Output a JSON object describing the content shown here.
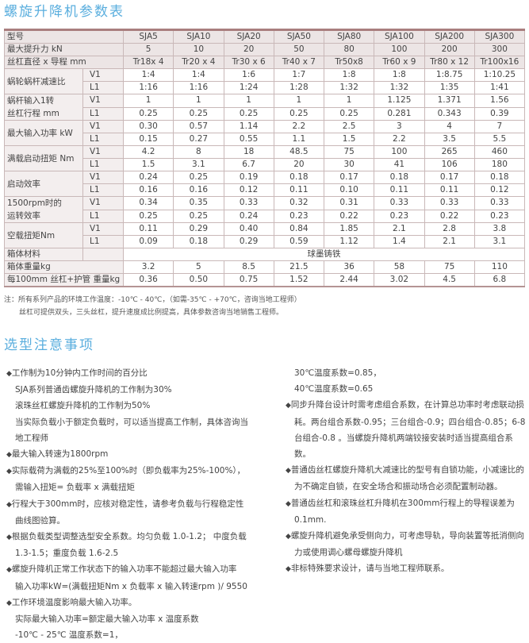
{
  "title": "螺旋升降机参数表",
  "table": {
    "header": {
      "label": "型号",
      "models": [
        "SJA5",
        "SJA10",
        "SJA20",
        "SJA50",
        "SJA80",
        "SJA100",
        "SJA200",
        "SJA300"
      ]
    },
    "single_rows_top": [
      {
        "label": "最大提升力 kN",
        "values": [
          "5",
          "10",
          "20",
          "50",
          "80",
          "100",
          "200",
          "300"
        ]
      },
      {
        "label": "丝杠直径 x 导程 mm",
        "values": [
          "Tr18x 4",
          "Tr20 x 4",
          "Tr30 x 6",
          "Tr40 x 7",
          "Tr50x8",
          "Tr60 x 9",
          "Tr80 x 12",
          "Tr100x16"
        ]
      }
    ],
    "pair_rows": [
      {
        "label": "蜗轮蜗杆减速比",
        "rows": [
          {
            "type": "V1",
            "values": [
              "1:4",
              "1:4",
              "1:6",
              "1:7",
              "1:8",
              "1:8",
              "1:8.75",
              "1:10.25"
            ]
          },
          {
            "type": "L1",
            "values": [
              "1:16",
              "1:16",
              "1:24",
              "1:28",
              "1:32",
              "1:32",
              "1:35",
              "1:41"
            ]
          }
        ]
      },
      {
        "label": "蜗杆输入1转\n丝杠行程 mm",
        "label_lines": [
          "蜗杆输入1转",
          "丝杠行程 mm"
        ],
        "rows": [
          {
            "type": "V1",
            "values": [
              "1",
              "1",
              "1",
              "1",
              "1",
              "1.125",
              "1.371",
              "1.56"
            ]
          },
          {
            "type": "L1",
            "values": [
              "0.25",
              "0.25",
              "0.25",
              "0.25",
              "0.25",
              "0.281",
              "0.343",
              "0.39"
            ]
          }
        ]
      },
      {
        "label": "最大输入功率 kW",
        "rows": [
          {
            "type": "V1",
            "values": [
              "0.30",
              "0.57",
              "1.14",
              "2.2",
              "2.5",
              "3",
              "4",
              "7"
            ]
          },
          {
            "type": "L1",
            "values": [
              "0.15",
              "0.27",
              "0.55",
              "1.1",
              "1.5",
              "2.2",
              "3.5",
              "5.5"
            ]
          }
        ]
      },
      {
        "label": "满载启动扭矩 Nm",
        "rows": [
          {
            "type": "V1",
            "values": [
              "4.2",
              "8",
              "18",
              "48.5",
              "75",
              "100",
              "265",
              "460"
            ]
          },
          {
            "type": "L1",
            "values": [
              "1.5",
              "3.1",
              "6.7",
              "20",
              "30",
              "41",
              "106",
              "180"
            ]
          }
        ]
      },
      {
        "label": "启动效率",
        "rows": [
          {
            "type": "V1",
            "values": [
              "0.24",
              "0.25",
              "0.19",
              "0.18",
              "0.17",
              "0.18",
              "0.17",
              "0.18"
            ]
          },
          {
            "type": "L1",
            "values": [
              "0.16",
              "0.16",
              "0.12",
              "0.11",
              "0.10",
              "0.11",
              "0.11",
              "0.12"
            ]
          }
        ]
      },
      {
        "label": "1500rpm时的\n运转效率",
        "label_lines": [
          "1500rpm时的",
          "运转效率"
        ],
        "rows": [
          {
            "type": "V1",
            "values": [
              "0.34",
              "0.35",
              "0.33",
              "0.32",
              "0.31",
              "0.33",
              "0.33",
              "0.33"
            ]
          },
          {
            "type": "L1",
            "values": [
              "0.25",
              "0.25",
              "0.24",
              "0.23",
              "0.22",
              "0.23",
              "0.22",
              "0.23"
            ]
          }
        ]
      },
      {
        "label": "空载扭矩Nm",
        "rows": [
          {
            "type": "V1",
            "values": [
              "0.11",
              "0.29",
              "0.40",
              "0.84",
              "1.85",
              "2.1",
              "2.8",
              "3.8"
            ]
          },
          {
            "type": "L1",
            "values": [
              "0.09",
              "0.18",
              "0.29",
              "0.59",
              "1.12",
              "1.4",
              "2.1",
              "3.1"
            ]
          }
        ]
      }
    ],
    "material": {
      "label": "箱体材料",
      "value": "球墨铸铁"
    },
    "single_rows_bottom": [
      {
        "label": "箱体重量kg",
        "values": [
          "3.2",
          "5",
          "8.5",
          "21.5",
          "36",
          "58",
          "75",
          "110"
        ]
      },
      {
        "label": "每100mm 丝杠+护管 重量kg",
        "values": [
          "0.36",
          "0.50",
          "0.75",
          "1.52",
          "2.44",
          "3.02",
          "4.5",
          "6.8"
        ]
      }
    ]
  },
  "notes": [
    "注：所有系列产品的环境工作温度：-10℃ - 40℃，（如需-35℃ - +70℃，咨询当地工程师）",
    "丝杠可提供双头，三头丝杠，提升速度成比例提高，具体参数咨询当地销售工程师。"
  ],
  "section2_title": "选型注意事项",
  "left_lines": [
    {
      "bullet": true,
      "text": "工作制为10分钟内工作时间的百分比"
    },
    {
      "bullet": false,
      "text": "SJA系列普通齿螺旋升降机的工作制为30%"
    },
    {
      "bullet": false,
      "text": "滚珠丝杠螺旋升降机的工作制为50%"
    },
    {
      "bullet": false,
      "text": "当实际负载小于额定负载时，可以适当提高工作制，具体咨询当"
    },
    {
      "bullet": false,
      "text": "地工程师"
    },
    {
      "bullet": true,
      "text": "最大输入转速为1800rpm"
    },
    {
      "bullet": true,
      "text": "实际载荷为满载的25%至100%时（即负载率为25%-100%），"
    },
    {
      "bullet": false,
      "text": "需输入扭矩= 负载率 x 满载扭矩"
    },
    {
      "bullet": true,
      "text": "行程大于300mm时，应核对稳定性，请参考负载与行程稳定性"
    },
    {
      "bullet": false,
      "text": "曲线图验算。"
    },
    {
      "bullet": true,
      "text": "根据负载类型调整选型安全系数。均匀负载 1.0-1.2； 中度负载"
    },
    {
      "bullet": false,
      "text": "1.3-1.5；重度负载 1.6-2.5"
    },
    {
      "bullet": true,
      "text": "螺旋升降机正常工作状态下的输入功率不能超过最大输入功率"
    },
    {
      "bullet": false,
      "text": "输入功率kW=(满载扭矩Nm x 负载率 x 输入转速rpm )/ 9550"
    },
    {
      "bullet": true,
      "text": "工作环境温度影响最大输入功率。"
    },
    {
      "bullet": false,
      "text": "实际最大输入功率=额定最大输入功率 x 温度系数"
    },
    {
      "bullet": false,
      "text": "-10℃ - 25℃ 温度系数=1，"
    }
  ],
  "right_lines": [
    {
      "bullet": false,
      "text": "30℃温度系数=0.85，"
    },
    {
      "bullet": false,
      "text": "40℃温度系数=0.65"
    },
    {
      "bullet": true,
      "text": "同步升降台设计时需考虑组合系数，在计算总功率时考虑联动损"
    },
    {
      "bullet": false,
      "text": "耗。两台组合系数-0.95；三台组合-0.9；四台组合-0.85；6-8"
    },
    {
      "bullet": false,
      "text": "台组合-0.8 。当螺旋升降机两端铰接安装时适当提高组合系"
    },
    {
      "bullet": false,
      "text": "数。"
    },
    {
      "bullet": true,
      "text": "普通齿丝杠螺旋升降机大减速比的型号有自锁功能，小减速比的"
    },
    {
      "bullet": false,
      "text": "为不确定自锁，在安全场合和振动场合必须配置制动器。"
    },
    {
      "bullet": true,
      "text": "普通齿丝杠和滚珠丝杠升降机在300mm行程上的导程误差为"
    },
    {
      "bullet": false,
      "text": "0.1mm."
    },
    {
      "bullet": true,
      "text": "螺旋升降机避免承受侧向力，可考虑导轨，导向装置等抵消侧向"
    },
    {
      "bullet": false,
      "text": "力或使用调心螺母螺旋升降机"
    },
    {
      "bullet": true,
      "text": "非标特殊要求设计，请与当地工程师联系。"
    }
  ],
  "bullet_glyph": "◆",
  "colors": {
    "title": "#5aaede",
    "table_border_top": "#a97e7e"
  }
}
